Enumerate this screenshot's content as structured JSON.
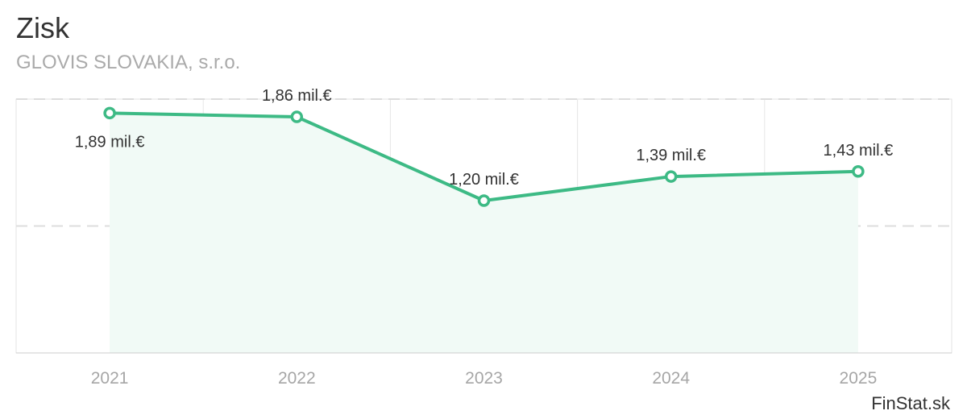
{
  "header": {
    "title": "Zisk",
    "subtitle": "GLOVIS SLOVAKIA, s.r.o."
  },
  "credit": "FinStat.sk",
  "colors": {
    "line": "#3dba85",
    "area": "#f1faf6",
    "grid": "#dddddd"
  },
  "chart_data": {
    "type": "area",
    "title": "Zisk",
    "subtitle": "GLOVIS SLOVAKIA, s.r.o.",
    "categories": [
      "2021",
      "2022",
      "2023",
      "2024",
      "2025"
    ],
    "series": [
      {
        "values": [
          1.89,
          1.86,
          1.2,
          1.39,
          1.43
        ],
        "labels": [
          "1,89 mil.€",
          "1,86 mil.€",
          "1,20 mil.€",
          "1,39 mil.€",
          "1,43 mil.€"
        ]
      }
    ],
    "ylim": [
      0,
      2
    ],
    "grid": true,
    "legend": "none"
  }
}
